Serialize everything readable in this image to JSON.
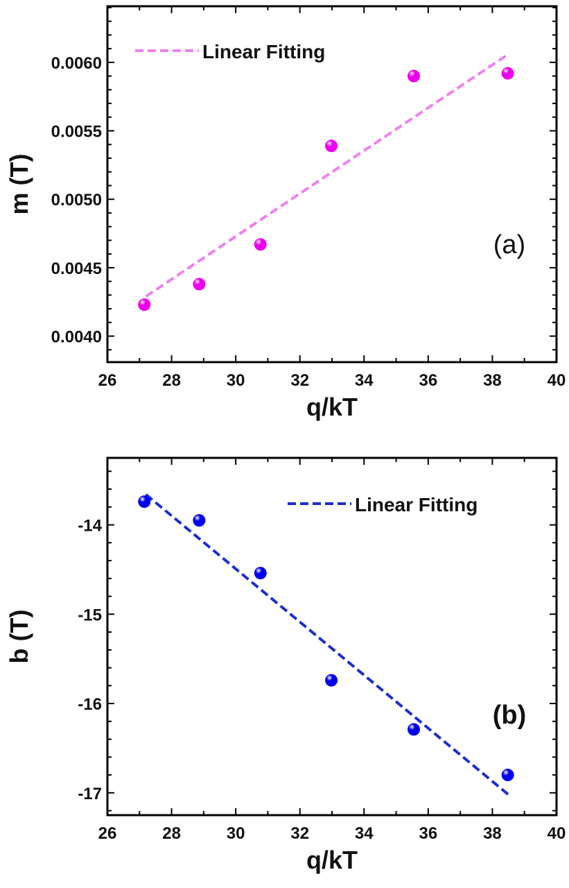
{
  "chart_data": [
    {
      "type": "scatter",
      "panel_label": "(a)",
      "xlabel": "q/kT",
      "ylabel": "m (T)",
      "xlim": [
        26,
        40
      ],
      "ylim": [
        0.00381,
        0.00641
      ],
      "xticks": [
        26,
        28,
        30,
        32,
        34,
        36,
        38,
        40
      ],
      "yticks": [
        "0.0040",
        "0.0045",
        "0.0050",
        "0.0055",
        "0.0060"
      ],
      "grid": false,
      "legend": {
        "placement": "top-left",
        "entries": [
          "Linear Fitting"
        ]
      },
      "points": {
        "x": [
          27.15,
          28.86,
          30.77,
          32.98,
          35.55,
          38.48
        ],
        "y": [
          0.00423,
          0.00438,
          0.00467,
          0.00539,
          0.0059,
          0.00592
        ]
      },
      "fit": {
        "name": "Linear Fitting",
        "x": [
          27.2,
          38.5
        ],
        "y": [
          0.00429,
          0.00606
        ]
      },
      "colors": {
        "points": "#ee00ee",
        "fit": "#f080f0"
      }
    },
    {
      "type": "scatter",
      "panel_label": "(b)",
      "xlabel": "q/kT",
      "ylabel": "b (T)",
      "xlim": [
        26,
        40
      ],
      "ylim": [
        -17.25,
        -13.25
      ],
      "xticks": [
        26,
        28,
        30,
        32,
        34,
        36,
        38,
        40
      ],
      "yticks": [
        "-17",
        "-16",
        "-15",
        "-14"
      ],
      "grid": false,
      "legend": {
        "placement": "top-right",
        "entries": [
          "Linear Fitting"
        ]
      },
      "points": {
        "x": [
          27.15,
          28.86,
          30.77,
          32.98,
          35.55,
          38.48
        ],
        "y": [
          -13.74,
          -13.95,
          -14.54,
          -15.74,
          -16.29,
          -16.8
        ]
      },
      "fit": {
        "name": "Linear Fitting",
        "x": [
          27.2,
          38.5
        ],
        "y": [
          -13.66,
          -17.02
        ]
      },
      "colors": {
        "points": "#0000ee",
        "fit": "#1a2fd0"
      }
    }
  ]
}
